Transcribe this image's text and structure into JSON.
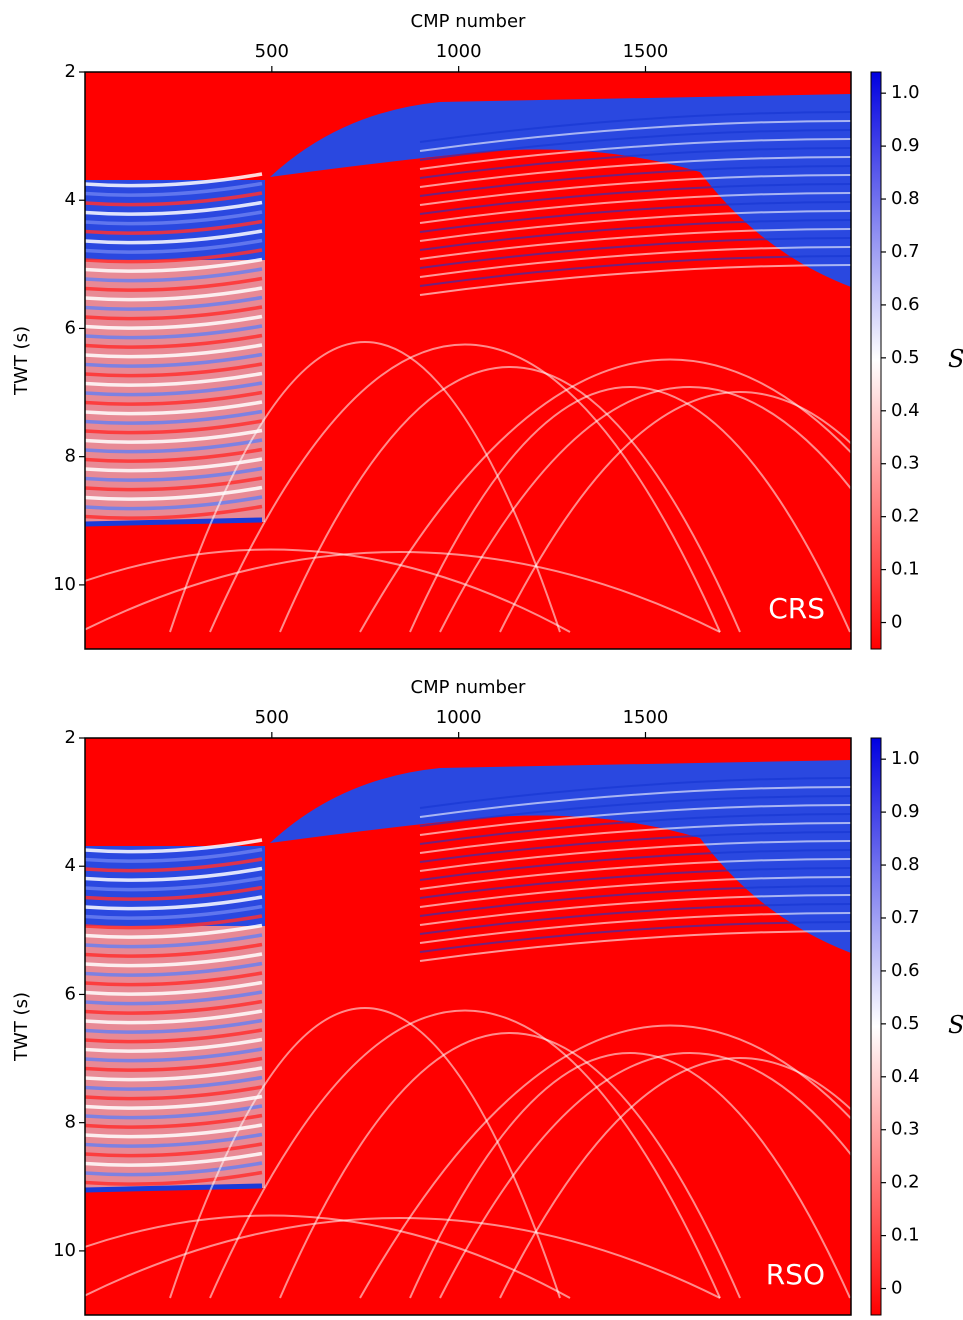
{
  "chart_data": [
    {
      "type": "heatmap",
      "x_label": "CMP number",
      "y_label": "TWT (s)",
      "colorbar_label": "S",
      "panel_label": "CRS",
      "xlim": [
        0,
        2050
      ],
      "xticks": [
        500,
        1000,
        1500
      ],
      "ylim": [
        2,
        11
      ],
      "yticks": [
        2,
        4,
        6,
        8,
        10
      ],
      "clim": [
        -0.05,
        1.04
      ],
      "cticks": [
        0,
        0.1,
        0.2,
        0.3,
        0.4,
        0.5,
        0.6,
        0.7,
        0.8,
        0.9,
        {
          "value": 1,
          "label": "1.0"
        }
      ],
      "colormap": [
        "#ff0000",
        "#ffffff",
        "#0000e0"
      ]
    },
    {
      "type": "heatmap",
      "x_label": "CMP number",
      "y_label": "TWT (s)",
      "colorbar_label": "S",
      "panel_label": "RSO",
      "xlim": [
        0,
        2050
      ],
      "xticks": [
        500,
        1000,
        1500
      ],
      "ylim": [
        2,
        11
      ],
      "yticks": [
        2,
        4,
        6,
        8,
        10
      ],
      "clim": [
        -0.05,
        1.04
      ],
      "cticks": [
        0,
        0.1,
        0.2,
        0.3,
        0.4,
        0.5,
        0.6,
        0.7,
        0.8,
        0.9,
        {
          "value": 1,
          "label": "1.0"
        }
      ],
      "colormap": [
        "#ff0000",
        "#ffffff",
        "#0000e0"
      ]
    }
  ]
}
